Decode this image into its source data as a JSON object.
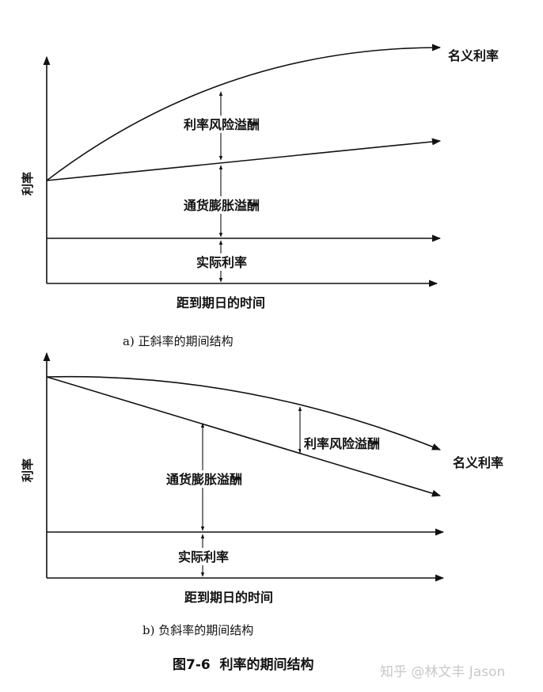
{
  "figure_caption": "图7-6  利率的期间结构",
  "watermark": "知乎 @林文丰 Jason",
  "panel_a": {
    "subcaption": "a) 正斜率的期间结构",
    "y_axis_label": "利率",
    "x_axis_label": "距到期日的时间",
    "curve_label": "名义利率",
    "band_labels": {
      "risk_premium": "利率风险溢酬",
      "inflation_premium": "通货膨胀溢酬",
      "real_rate": "实际利率"
    }
  },
  "panel_b": {
    "subcaption": "b) 负斜率的期间结构",
    "y_axis_label": "利率",
    "x_axis_label": "距到期日的时间",
    "curve_label": "名义利率",
    "band_labels": {
      "risk_premium": "利率风险溢酬",
      "inflation_premium": "通货膨胀溢酬",
      "real_rate": "实际利率"
    }
  }
}
